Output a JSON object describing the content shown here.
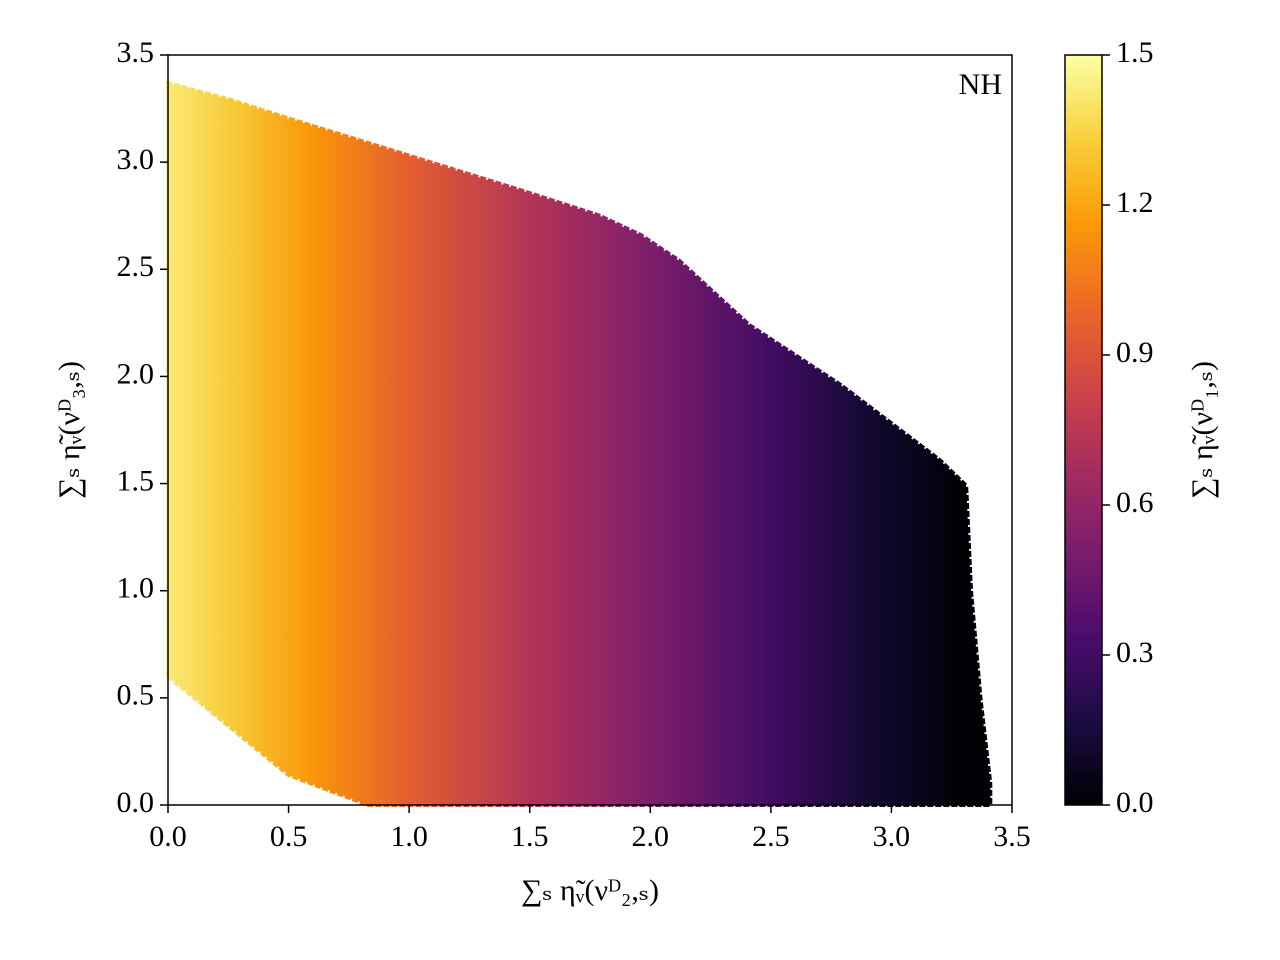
{
  "chart_data": {
    "type": "hexbin-region",
    "annotation": "NH",
    "x_label": "∑ₛ η̃ᵥ(νᴰ₂,ₛ)",
    "y_label": "∑ₛ η̃ᵥ(νᴰ₃,ₛ)",
    "colorbar_label": "∑ₛ η̃ᵥ(νᴰ₁,ₛ)",
    "xlim": [
      0,
      3.5
    ],
    "ylim": [
      0,
      3.5
    ],
    "xticks": [
      {
        "value": 0,
        "label": "0.0"
      },
      0.5,
      {
        "value": 1,
        "label": "1.0"
      },
      1.5,
      {
        "value": 2,
        "label": "2.0"
      },
      2.5,
      {
        "value": 3,
        "label": "3.0"
      },
      3.5
    ],
    "yticks": [
      {
        "value": 0,
        "label": "0.0"
      },
      0.5,
      {
        "value": 1,
        "label": "1.0"
      },
      1.5,
      {
        "value": 2,
        "label": "2.0"
      },
      2.5,
      {
        "value": 3,
        "label": "3.0"
      },
      3.5
    ],
    "boundary": {
      "x": [
        0,
        0.5,
        0.83,
        3.41,
        3.41,
        3.37,
        3.33,
        3.31,
        3.2,
        2.79,
        2.41,
        2.12,
        1.96,
        1.79,
        1.46,
        1.0,
        0.51,
        0.26,
        0
      ],
      "y": [
        0.6,
        0.14,
        0,
        0,
        0.1,
        0.49,
        1.0,
        1.49,
        1.61,
        1.96,
        2.24,
        2.54,
        2.66,
        2.75,
        2.87,
        3.03,
        3.2,
        3.29,
        3.37
      ]
    },
    "z_profile": {
      "x": [
        0,
        0.3,
        0.6,
        1.0,
        1.5,
        2.0,
        2.5,
        2.9,
        3.3
      ],
      "values": [
        1.42,
        1.3,
        1.15,
        0.95,
        0.72,
        0.52,
        0.3,
        0.12,
        0
      ]
    },
    "clim": [
      0,
      1.5
    ],
    "cticks": [
      {
        "value": 0,
        "label": "0.0"
      },
      0.3,
      0.6,
      0.9,
      1.2,
      1.5
    ],
    "colormap": [
      "#000004",
      "#1b0c41",
      "#4a0c6b",
      "#781c6d",
      "#a52c60",
      "#cf4446",
      "#ed6925",
      "#fb9b06",
      "#f7d13d",
      "#fcffa4"
    ]
  }
}
